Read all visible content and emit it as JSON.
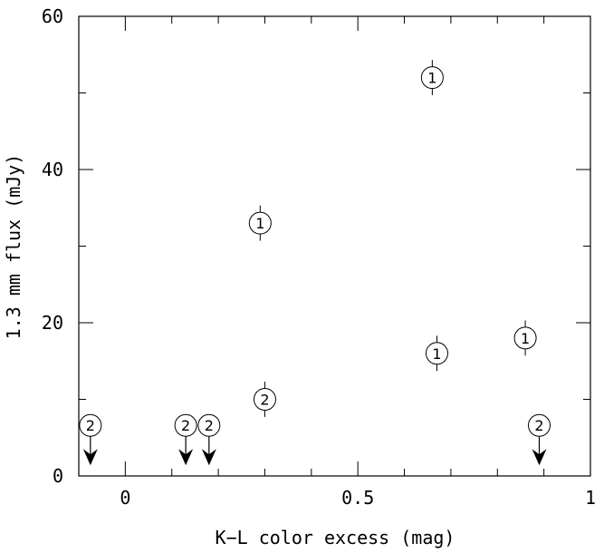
{
  "chart_data": {
    "type": "scatter",
    "title": "",
    "xlabel": "K−L color excess (mag)",
    "ylabel": "1.3 mm flux (mJy)",
    "xlim": [
      -0.1,
      1.0
    ],
    "ylim": [
      0,
      60
    ],
    "grid": false,
    "x_ticks": [
      {
        "value": 0,
        "label": "0"
      },
      {
        "value": 0.5,
        "label": "0.5"
      },
      {
        "value": 1,
        "label": "1"
      }
    ],
    "y_ticks": [
      {
        "value": 0,
        "label": "0"
      },
      {
        "value": 20,
        "label": "20"
      },
      {
        "value": 40,
        "label": "40"
      },
      {
        "value": 60,
        "label": "60"
      }
    ],
    "detections": [
      {
        "x": 0.66,
        "y": 52,
        "err": 2.3,
        "label": "1"
      },
      {
        "x": 0.29,
        "y": 33,
        "err": 2.3,
        "label": "1"
      },
      {
        "x": 0.67,
        "y": 16,
        "err": 2.3,
        "label": "1"
      },
      {
        "x": 0.86,
        "y": 18,
        "err": 2.3,
        "label": "1"
      },
      {
        "x": 0.3,
        "y": 10,
        "err": 2.3,
        "label": "2"
      }
    ],
    "upper_limits": [
      {
        "x": -0.075,
        "y": 6.6,
        "label": "2"
      },
      {
        "x": 0.13,
        "y": 6.6,
        "label": "2"
      },
      {
        "x": 0.18,
        "y": 6.6,
        "label": "2"
      },
      {
        "x": 0.89,
        "y": 6.6,
        "label": "2"
      }
    ]
  }
}
